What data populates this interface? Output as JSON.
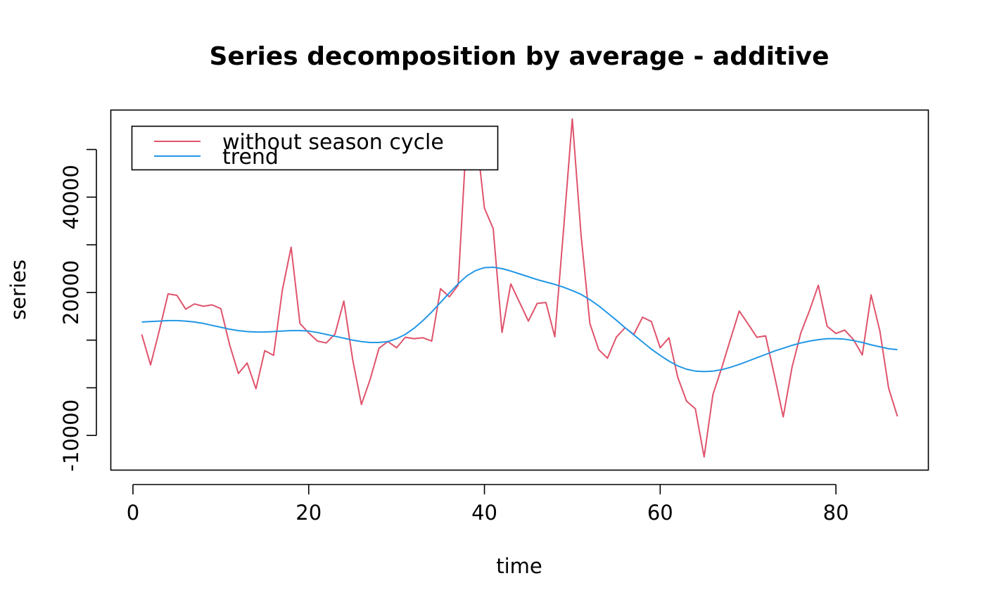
{
  "chart_data": {
    "type": "line",
    "title": "Series decomposition by average - additive",
    "xlabel": "time",
    "ylabel": "series",
    "xlim": [
      -2.48,
      90.48
    ],
    "ylim": [
      -17200,
      58200
    ],
    "x_ticks": [
      0,
      20,
      40,
      60,
      80
    ],
    "y_ticks": [
      -10000,
      0,
      10000,
      20000,
      30000,
      40000,
      50000
    ],
    "y_tick_labels": [
      "-10000",
      "",
      "",
      "20000",
      "",
      "40000",
      ""
    ],
    "legend": {
      "position": "top-left"
    },
    "grid": false,
    "x": [
      1,
      2,
      3,
      4,
      5,
      6,
      7,
      8,
      9,
      10,
      11,
      12,
      13,
      14,
      15,
      16,
      17,
      18,
      19,
      20,
      21,
      22,
      23,
      24,
      25,
      26,
      27,
      28,
      29,
      30,
      31,
      32,
      33,
      34,
      35,
      36,
      37,
      38,
      39,
      40,
      41,
      42,
      43,
      44,
      45,
      46,
      47,
      48,
      49,
      50,
      51,
      52,
      53,
      54,
      55,
      56,
      57,
      58,
      59,
      60,
      61,
      62,
      63,
      64,
      65,
      66,
      67,
      68,
      69,
      70,
      71,
      72,
      73,
      74,
      75,
      76,
      77,
      78,
      79,
      80,
      81,
      82,
      83,
      84,
      85,
      86,
      87
    ],
    "series": [
      {
        "name": "without season cycle",
        "color": "#DF536B",
        "values": [
          11200,
          4800,
          12000,
          19700,
          19400,
          16500,
          17600,
          17100,
          17400,
          16600,
          9000,
          3000,
          5200,
          -200,
          7800,
          6800,
          20500,
          29500,
          13500,
          11500,
          9800,
          9400,
          11300,
          18200,
          6000,
          -3500,
          1800,
          8300,
          9700,
          8400,
          10600,
          10300,
          10500,
          9800,
          20800,
          19100,
          21500,
          54000,
          54300,
          37700,
          33400,
          11600,
          21800,
          17900,
          14000,
          17700,
          17900,
          10700,
          33000,
          56400,
          32000,
          13500,
          8000,
          6200,
          10600,
          12600,
          11200,
          14800,
          13900,
          8400,
          10500,
          2200,
          -2800,
          -4400,
          -14500,
          -1400,
          4200,
          10200,
          16100,
          13400,
          10600,
          10900,
          2600,
          -6100,
          4300,
          11500,
          16200,
          21500,
          12900,
          11400,
          12100,
          10100,
          6900,
          19500,
          11900,
          -54,
          -6000
        ]
      },
      {
        "name": "trend",
        "color": "#2297E6",
        "values": [
          13800,
          13900,
          14000,
          14100,
          14100,
          14000,
          13800,
          13500,
          13100,
          12700,
          12300,
          12000,
          11800,
          11700,
          11700,
          11800,
          11900,
          12000,
          12000,
          11900,
          11600,
          11200,
          10800,
          10400,
          10000,
          9700,
          9500,
          9500,
          9700,
          10300,
          11200,
          12500,
          14100,
          15900,
          17900,
          19900,
          21800,
          23500,
          24600,
          25200,
          25300,
          25000,
          24500,
          23900,
          23300,
          22700,
          22200,
          21700,
          21100,
          20400,
          19600,
          18500,
          17200,
          15700,
          14200,
          12600,
          11100,
          9600,
          8100,
          6800,
          5600,
          4600,
          3900,
          3500,
          3400,
          3500,
          3800,
          4300,
          4900,
          5600,
          6300,
          7000,
          7700,
          8300,
          8900,
          9400,
          9800,
          10100,
          10300,
          10300,
          10200,
          9900,
          9500,
          9000,
          8600,
          8200,
          8000
        ]
      }
    ]
  }
}
